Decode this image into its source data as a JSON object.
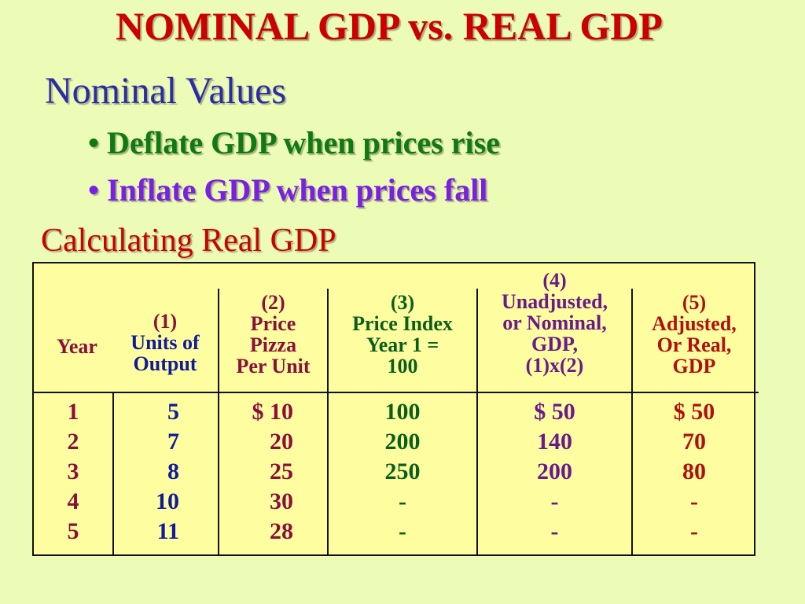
{
  "title": "NOMINAL GDP vs. REAL GDP",
  "subheading1": "Nominal Values",
  "bullets": [
    {
      "text": "Deflate GDP when prices rise",
      "color": "#0f7a0f"
    },
    {
      "text": "Inflate GDP when prices fall",
      "color": "#7a1fe6"
    }
  ],
  "bullet_char": "•",
  "subheading2": "Calculating Real GDP",
  "table": {
    "headers": {
      "year": "Year",
      "col1": [
        "(1)",
        "Units of",
        "Output"
      ],
      "col2": [
        "(2)",
        "Price",
        "Pizza",
        "Per Unit"
      ],
      "col3": [
        "(3)",
        "Price Index",
        "Year 1 =",
        "100"
      ],
      "col4": [
        "(4)",
        "Unadjusted,",
        "or Nominal,",
        "GDP,",
        "(1)x(2)"
      ],
      "col5": [
        "(5)",
        "Adjusted,",
        "Or Real,",
        "GDP"
      ]
    },
    "columns": {
      "year": [
        "1",
        "2",
        "3",
        "4",
        "5"
      ],
      "units": [
        "5",
        "7",
        "8",
        "10",
        "11"
      ],
      "price": [
        "$ 10",
        "20",
        "25",
        "30",
        "28"
      ],
      "index": [
        "100",
        "200",
        "250",
        "-",
        "-"
      ],
      "nominal": [
        "$ 50",
        "140",
        "200",
        "-",
        "-"
      ],
      "real": [
        "$ 50",
        "70",
        "80",
        "-",
        "-"
      ]
    }
  }
}
